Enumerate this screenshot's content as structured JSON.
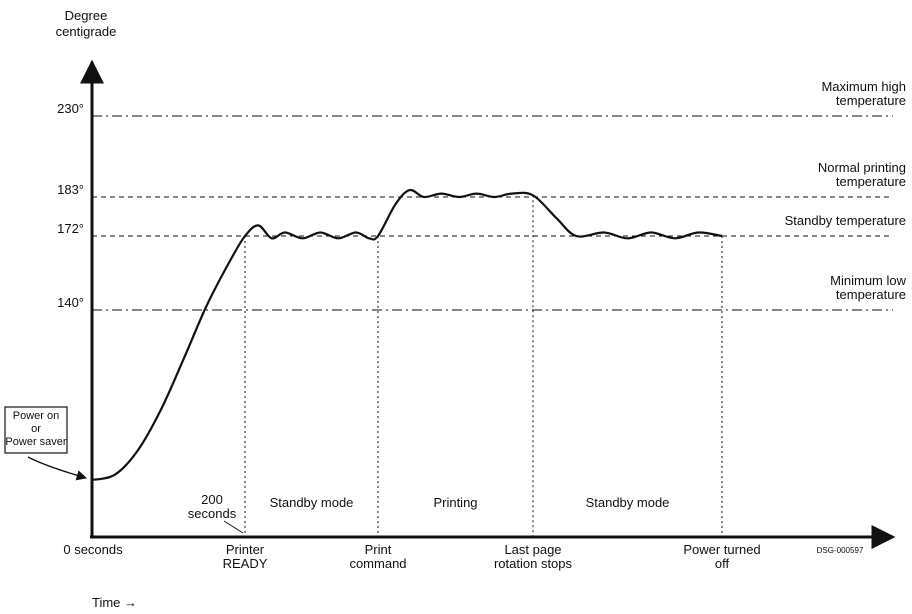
{
  "chart_data": {
    "type": "line",
    "y_axis_title": [
      "Degree",
      "centigrade"
    ],
    "x_axis_title": "Time →",
    "y_ticks": [
      {
        "value": 230,
        "label": "230°"
      },
      {
        "value": 183,
        "label": "183°"
      },
      {
        "value": 172,
        "label": "172°"
      },
      {
        "value": 140,
        "label": "140°"
      }
    ],
    "reference_lines": [
      {
        "value": 230,
        "style": "dash-dot",
        "label": [
          "Maximum high",
          "temperature"
        ]
      },
      {
        "value": 183,
        "style": "dashed",
        "label": [
          "Normal printing",
          "temperature"
        ]
      },
      {
        "value": 172,
        "style": "dashed",
        "label": [
          "Standby temperature"
        ]
      },
      {
        "value": 140,
        "style": "dash-dot",
        "label": [
          "Minimum low",
          "temperature"
        ]
      }
    ],
    "events": [
      {
        "t": 0,
        "label": [
          "0 seconds"
        ]
      },
      {
        "t": 200,
        "label": [
          "Printer",
          "READY"
        ]
      },
      {
        "t": 350,
        "label": [
          "Print",
          "command"
        ]
      },
      {
        "t": 570,
        "label": [
          "Last page",
          "rotation stops"
        ]
      },
      {
        "t": 810,
        "label": [
          "Power turned",
          "off"
        ]
      }
    ],
    "phases": [
      {
        "start": 200,
        "end": 350,
        "label": "Standby mode"
      },
      {
        "start": 350,
        "end": 570,
        "label": "Printing"
      },
      {
        "start": 570,
        "end": 810,
        "label": "Standby mode"
      }
    ],
    "annotations": {
      "power_on": [
        "Power on",
        "or",
        "Power saver"
      ],
      "seconds_200": [
        "200",
        "seconds"
      ],
      "code": "DSG-000597"
    },
    "series": [
      {
        "color": "#111111",
        "points": [
          [
            0,
            77
          ],
          [
            30,
            79
          ],
          [
            60,
            88
          ],
          [
            90,
            103
          ],
          [
            120,
            122
          ],
          [
            150,
            142
          ],
          [
            180,
            161
          ],
          [
            200,
            172
          ],
          [
            215,
            175
          ],
          [
            230,
            171
          ],
          [
            245,
            173
          ],
          [
            265,
            171
          ],
          [
            285,
            173
          ],
          [
            305,
            171
          ],
          [
            325,
            173
          ],
          [
            340,
            171
          ],
          [
            350,
            172
          ],
          [
            375,
            181
          ],
          [
            395,
            187
          ],
          [
            415,
            183
          ],
          [
            440,
            185
          ],
          [
            465,
            183
          ],
          [
            490,
            185
          ],
          [
            515,
            183
          ],
          [
            540,
            185
          ],
          [
            570,
            184
          ],
          [
            600,
            177
          ],
          [
            625,
            172
          ],
          [
            660,
            173
          ],
          [
            690,
            171
          ],
          [
            720,
            173
          ],
          [
            750,
            171
          ],
          [
            780,
            173
          ],
          [
            810,
            172
          ]
        ]
      }
    ],
    "xlim": [
      0,
      930
    ],
    "ylim": [
      55,
      250
    ]
  }
}
